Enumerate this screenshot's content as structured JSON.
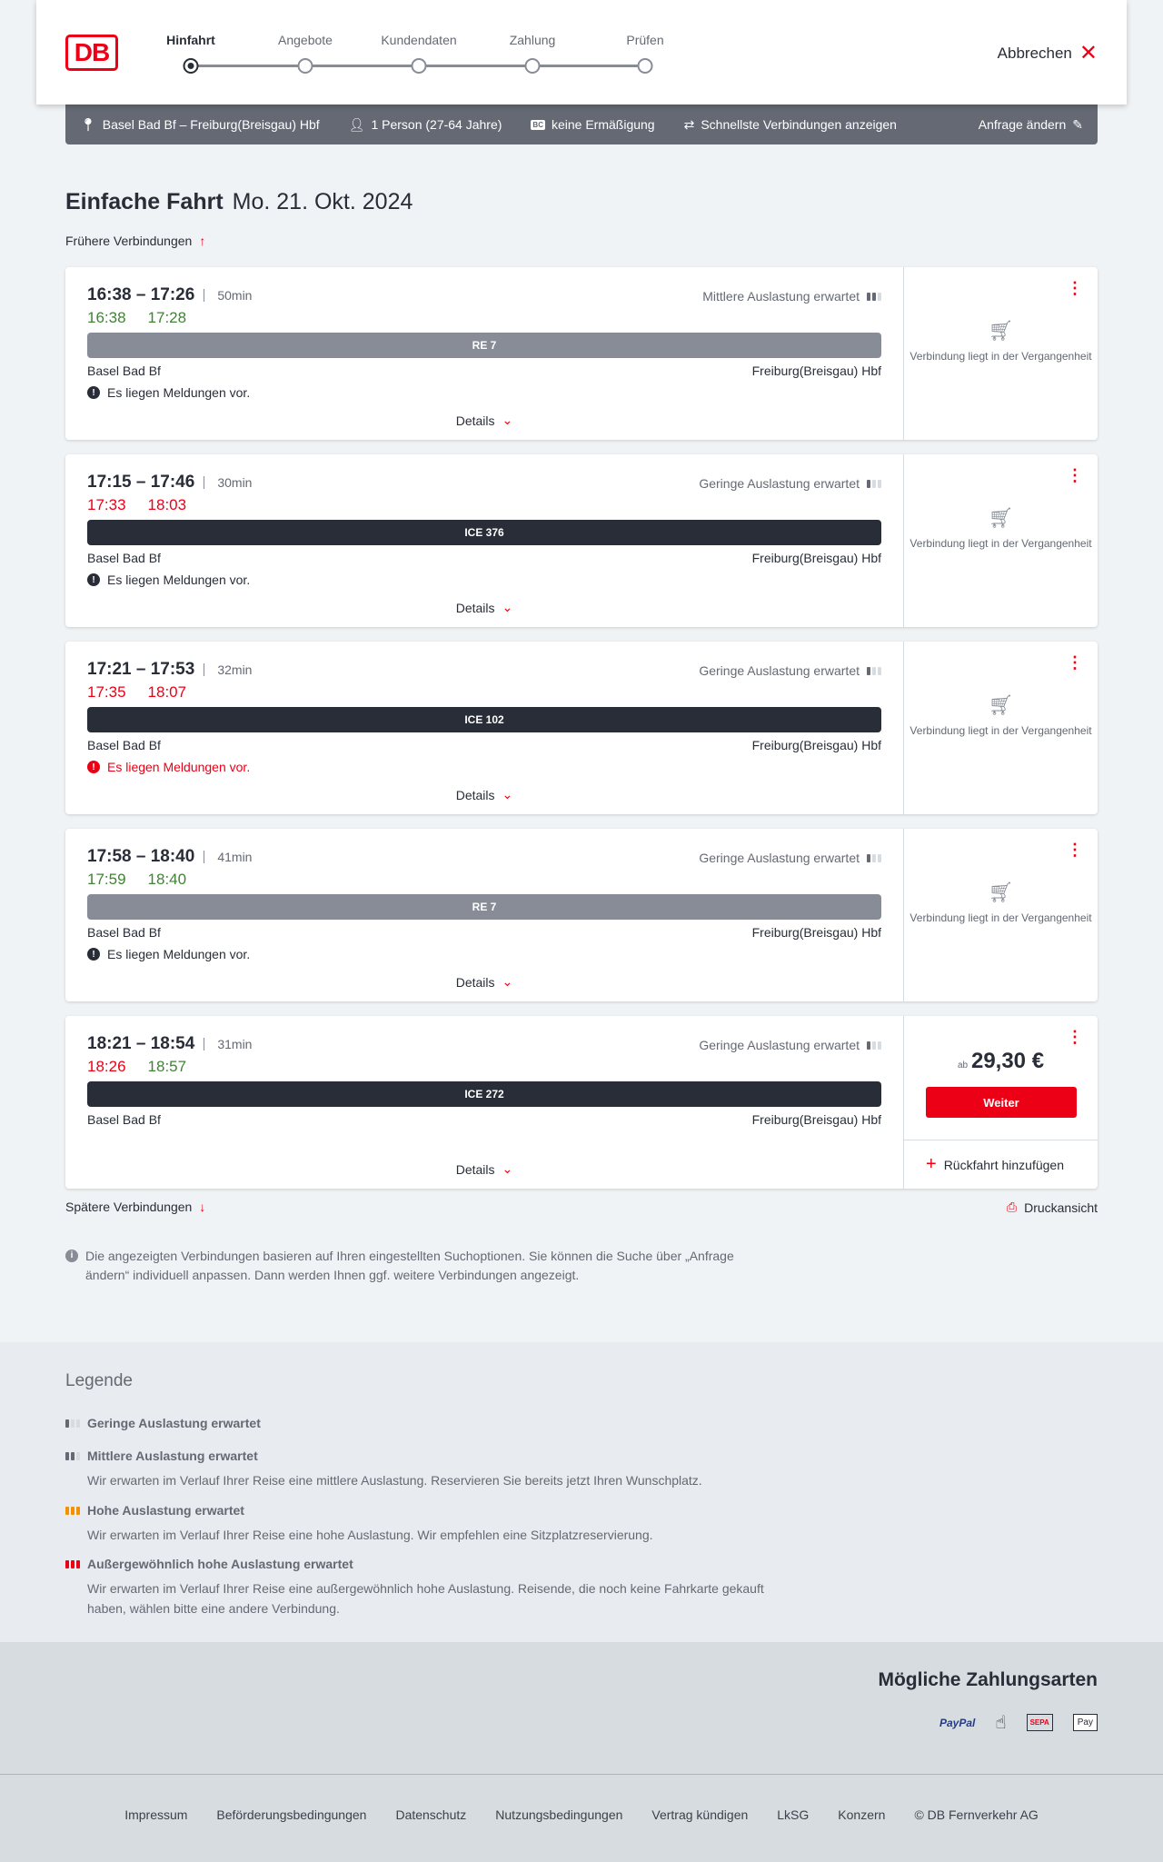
{
  "header": {
    "logo": "DB",
    "steps": [
      "Hinfahrt",
      "Angebote",
      "Kundendaten",
      "Zahlung",
      "Prüfen"
    ],
    "active_step": 0,
    "cancel": "Abbrechen"
  },
  "summary": {
    "route": "Basel Bad Bf – Freiburg(Breisgau) Hbf",
    "travellers": "1 Person (27-64 Jahre)",
    "discount_badge": "BC",
    "discount": "keine Ermäßigung",
    "option": "Schnellste Verbindungen anzeigen",
    "edit": "Anfrage ändern"
  },
  "page": {
    "title": "Einfache Fahrt",
    "date": "Mo. 21. Okt. 2024",
    "earlier": "Frühere Verbindungen",
    "later": "Spätere Verbindungen",
    "print": "Druckansicht",
    "info": "Die angezeigten Verbindungen basieren auf Ihren eingestellten Suchoptionen. Sie können die Suche über „Anfrage ändern“ individuell anpassen. Dann werden Ihnen ggf. weitere Verbindungen angezeigt."
  },
  "connections": [
    {
      "time": "16:38 – 17:26",
      "duration": "50min",
      "occupancy": "Mittlere Auslastung erwartet",
      "rt_dep": "16:38",
      "rt_arr": "17:28",
      "train": "RE 7",
      "from": "Basel Bad Bf",
      "to": "Freiburg(Breisgau) Hbf",
      "message": "Es liegen Meldungen vor.",
      "details": "Details",
      "status": "Verbindung liegt in der Vergangenheit"
    },
    {
      "time": "17:15 – 17:46",
      "duration": "30min",
      "occupancy": "Geringe Auslastung erwartet",
      "rt_dep": "17:33",
      "rt_arr": "18:03",
      "train": "ICE 376",
      "from": "Basel Bad Bf",
      "to": "Freiburg(Breisgau) Hbf",
      "message": "Es liegen Meldungen vor.",
      "details": "Details",
      "status": "Verbindung liegt in der Vergangenheit"
    },
    {
      "time": "17:21 – 17:53",
      "duration": "32min",
      "occupancy": "Geringe Auslastung erwartet",
      "rt_dep": "17:35",
      "rt_arr": "18:07",
      "train": "ICE 102",
      "from": "Basel Bad Bf",
      "to": "Freiburg(Breisgau) Hbf",
      "message": "Es liegen Meldungen vor.",
      "details": "Details",
      "status": "Verbindung liegt in der Vergangenheit"
    },
    {
      "time": "17:58 – 18:40",
      "duration": "41min",
      "occupancy": "Geringe Auslastung erwartet",
      "rt_dep": "17:59",
      "rt_arr": "18:40",
      "train": "RE 7",
      "from": "Basel Bad Bf",
      "to": "Freiburg(Breisgau) Hbf",
      "message": "Es liegen Meldungen vor.",
      "details": "Details",
      "status": "Verbindung liegt in der Vergangenheit"
    },
    {
      "time": "18:21 – 18:54",
      "duration": "31min",
      "occupancy": "Geringe Auslastung erwartet",
      "rt_dep": "18:26",
      "rt_arr": "18:57",
      "train": "ICE 272",
      "from": "Basel Bad Bf",
      "to": "Freiburg(Breisgau) Hbf",
      "details": "Details",
      "price_prefix": "ab",
      "price": "29,30 €",
      "button": "Weiter",
      "return": "Rückfahrt hinzufügen"
    }
  ],
  "legend": {
    "title": "Legende",
    "items": [
      {
        "title": "Geringe Auslastung erwartet"
      },
      {
        "title": "Mittlere Auslastung erwartet",
        "desc": "Wir erwarten im Verlauf Ihrer Reise eine mittlere Auslastung. Reservieren Sie bereits jetzt Ihren Wunschplatz."
      },
      {
        "title": "Hohe Auslastung erwartet",
        "desc": "Wir erwarten im Verlauf Ihrer Reise eine hohe Auslastung. Wir empfehlen eine Sitzplatzreservierung."
      },
      {
        "title": "Außergewöhnlich hohe Auslastung erwartet",
        "desc": "Wir erwarten im Verlauf Ihrer Reise eine außergewöhnlich hohe Auslastung. Reisende, die noch keine Fahrkarte gekauft haben, wählen bitte eine andere Verbindung."
      }
    ]
  },
  "payment": {
    "title": "Mögliche Zahlungsarten",
    "methods": [
      "PayPal",
      "Kreditkarte",
      "SEPA",
      "Apple Pay"
    ]
  },
  "footer": {
    "links": [
      "Impressum",
      "Beförderungsbedingungen",
      "Datenschutz",
      "Nutzungsbedingungen",
      "Vertrag kündigen",
      "LkSG",
      "Konzern",
      "© DB Fernverkehr AG"
    ]
  },
  "colors": {
    "brand": "#ec0016",
    "on_time": "#408335",
    "delay": "#ec0016",
    "regional": "#878c96",
    "longdistance": "#282d37",
    "summary_bar": "#646973",
    "high_occupancy": "#f39200"
  }
}
